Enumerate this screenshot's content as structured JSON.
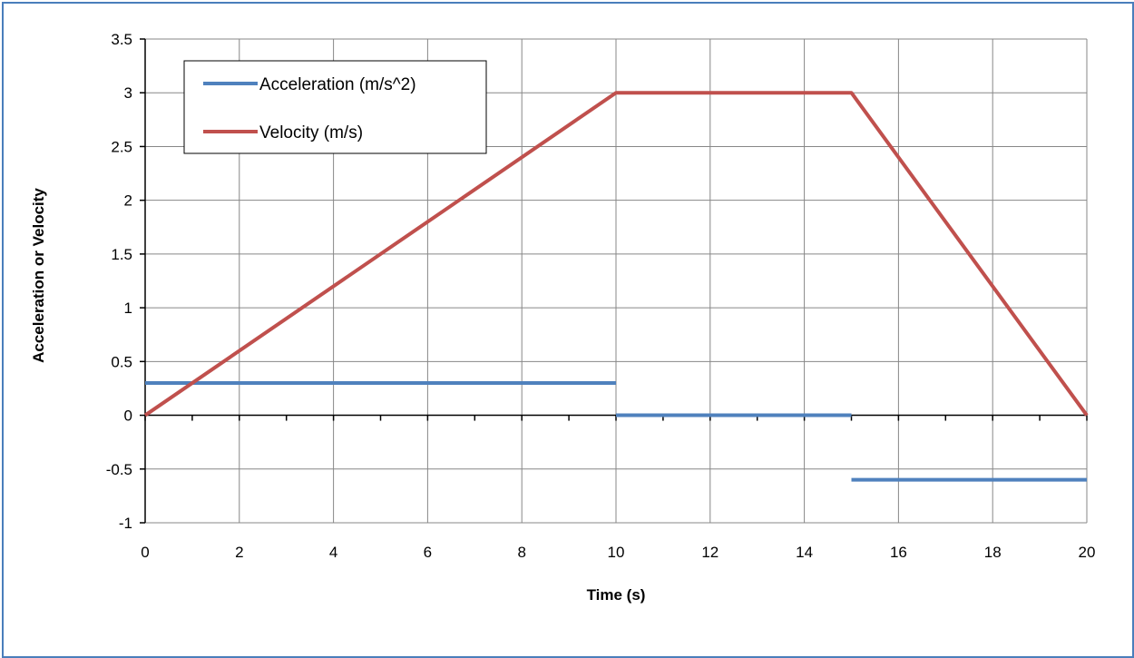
{
  "chart_data": {
    "type": "line",
    "title": "",
    "xlabel": "Time (s)",
    "ylabel": "Acceleration or Velocity",
    "xlim": [
      0,
      20
    ],
    "ylim": [
      -1,
      3.5
    ],
    "x_ticks": [
      0,
      2,
      4,
      6,
      8,
      10,
      12,
      14,
      16,
      18,
      20
    ],
    "x_tick_labels": [
      "0",
      "2",
      "4",
      "6",
      "8",
      "10",
      "12",
      "14",
      "16",
      "18",
      "20"
    ],
    "y_ticks": [
      -1,
      -0.5,
      0,
      0.5,
      1,
      1.5,
      2,
      2.5,
      3,
      3.5
    ],
    "y_tick_labels": [
      "-1",
      "-0.5",
      "0",
      "0.5",
      "1",
      "1.5",
      "2",
      "2.5",
      "3",
      "3.5"
    ],
    "grid": true,
    "legend_position": "top-left",
    "series": [
      {
        "name": "Acceleration (m/s^2)",
        "color": "#4f81bd",
        "segments": [
          {
            "x": [
              0,
              10
            ],
            "y": [
              0.3,
              0.3
            ]
          },
          {
            "x": [
              10,
              15
            ],
            "y": [
              0,
              0
            ]
          },
          {
            "x": [
              15,
              20
            ],
            "y": [
              -0.6,
              -0.6
            ]
          }
        ]
      },
      {
        "name": "Velocity (m/s)",
        "color": "#c0504d",
        "segments": [
          {
            "x": [
              0,
              10,
              15,
              20
            ],
            "y": [
              0,
              3,
              3,
              0
            ]
          }
        ]
      }
    ]
  }
}
